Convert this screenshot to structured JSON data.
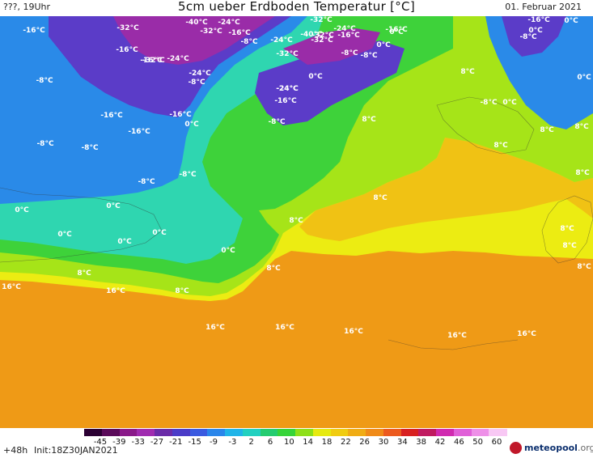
{
  "header": {
    "left": "???, 19Uhr",
    "title": "5cm ueber Erdboden Temperatur [°C]",
    "date": "01. Februar 2021"
  },
  "footer": {
    "lead": "+48h",
    "init": "Init:18Z30JAN2021",
    "logo_name": "meteopool",
    "logo_tld": ".org"
  },
  "legend": {
    "ticks": [
      "-45",
      "-39",
      "-33",
      "-27",
      "-21",
      "-15",
      "-9",
      "-3",
      "2",
      "6",
      "10",
      "14",
      "18",
      "22",
      "26",
      "30",
      "34",
      "38",
      "42",
      "46",
      "50",
      "60"
    ],
    "colors": [
      "#2b0033",
      "#5a0a5a",
      "#8a1a8a",
      "#a02cb0",
      "#6a2ca8",
      "#4b3cc8",
      "#3a5ae0",
      "#2a86ea",
      "#20b4e8",
      "#22d0c0",
      "#24cc70",
      "#36d438",
      "#8ee018",
      "#e6ea10",
      "#f0cc10",
      "#f0ac14",
      "#f08a18",
      "#ec5a1e",
      "#d82020",
      "#c01a60",
      "#d02ab0",
      "#e060d8",
      "#ee90e8",
      "#f8c8f4"
    ]
  },
  "map": {
    "colors": {
      "land_orange": "#ef9a16",
      "land_yellow_orange": "#f0c214",
      "land_yellow": "#ecec12",
      "land_yellow_green": "#a6e418",
      "land_green": "#3ed23a",
      "land_teal": "#2fd6b0",
      "land_blue": "#2a8ae8",
      "land_violet": "#5b3cc8",
      "land_purple": "#9a2ca8"
    },
    "labels": [
      {
        "text": "-16°C"
      },
      {
        "text": "-32°C"
      },
      {
        "text": "-40°C"
      },
      {
        "text": "-24°C"
      },
      {
        "text": "-32°C"
      },
      {
        "text": "-16°C"
      },
      {
        "text": "-32°C"
      },
      {
        "text": "-24°C"
      },
      {
        "text": "-16°C"
      },
      {
        "text": "-16°C"
      },
      {
        "text": "0°C"
      },
      {
        "text": "-8°C"
      },
      {
        "text": "-24°C"
      },
      {
        "text": "-32°C"
      },
      {
        "text": "-40°C"
      },
      {
        "text": "-32°C"
      },
      {
        "text": "-16°C"
      },
      {
        "text": "-8°C"
      },
      {
        "text": "0°C"
      },
      {
        "text": "-16°C"
      },
      {
        "text": "-8°C"
      },
      {
        "text": "0°C"
      },
      {
        "text": "-16°C"
      },
      {
        "text": "-24°C"
      },
      {
        "text": "-32°C"
      },
      {
        "text": "-32°C"
      },
      {
        "text": "-24°C"
      },
      {
        "text": "-8°C"
      },
      {
        "text": "-8°C"
      },
      {
        "text": "-24°C"
      },
      {
        "text": "-16°C"
      },
      {
        "text": "0°C"
      },
      {
        "text": "-8°C"
      },
      {
        "text": "0°C"
      },
      {
        "text": "8°C"
      },
      {
        "text": "0°C"
      },
      {
        "text": "-24°C"
      },
      {
        "text": "-16°C"
      },
      {
        "text": "-16°C"
      },
      {
        "text": "0°C"
      },
      {
        "text": "-16°C"
      },
      {
        "text": "-8°C"
      },
      {
        "text": "8°C"
      },
      {
        "text": "-8°C"
      },
      {
        "text": "0°C"
      },
      {
        "text": "8°C"
      },
      {
        "text": "8°C"
      },
      {
        "text": "-8°C"
      },
      {
        "text": "-8°C"
      },
      {
        "text": "8°C"
      },
      {
        "text": "8°C"
      },
      {
        "text": "-8°C"
      },
      {
        "text": "-8°C"
      },
      {
        "text": "8°C"
      },
      {
        "text": "0°C"
      },
      {
        "text": "0°C"
      },
      {
        "text": "0°C"
      },
      {
        "text": "8°C"
      },
      {
        "text": "0°C"
      },
      {
        "text": "8°C"
      },
      {
        "text": "0°C"
      },
      {
        "text": "0°C"
      },
      {
        "text": "8°C"
      },
      {
        "text": "8°C"
      },
      {
        "text": "8°C"
      },
      {
        "text": "8°C"
      },
      {
        "text": "8°C"
      },
      {
        "text": "16°C"
      },
      {
        "text": "16°C"
      },
      {
        "text": "16°C"
      },
      {
        "text": "16°C"
      },
      {
        "text": "16°C"
      },
      {
        "text": "16°C"
      },
      {
        "text": "16°C"
      }
    ]
  }
}
